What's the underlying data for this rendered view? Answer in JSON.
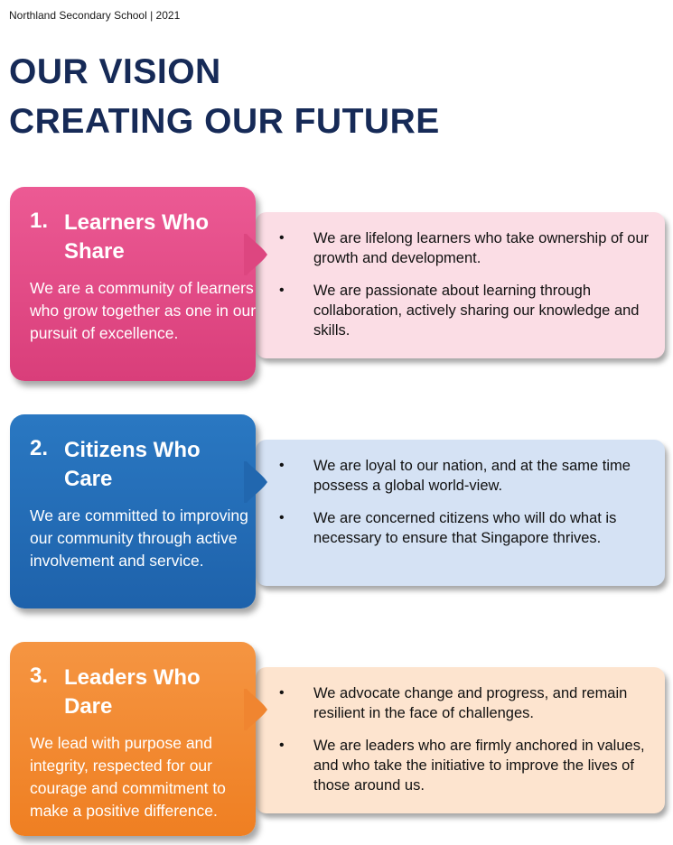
{
  "header": {
    "text": "Northland Secondary School | 2021"
  },
  "title": {
    "line1": "OUR VISION",
    "line2": "CREATING OUR FUTURE"
  },
  "sections": [
    {
      "number": "1.",
      "heading": "Learners Who Share",
      "description": "We are a community of learners who grow together as one in our pursuit of excellence.",
      "bullets": [
        "We are lifelong learners who take ownership of our growth and development.",
        "We are passionate about learning through collaboration, actively sharing our knowledge and skills."
      ],
      "color": "#e24f8a"
    },
    {
      "number": "2.",
      "heading": "Citizens Who Care",
      "description": "We are committed to improving our community through active involvement and service.",
      "bullets": [
        "We are loyal to our nation, and at the same time possess a global world-view.",
        "We are concerned citizens who will do what is necessary to ensure that Singapore thrives."
      ],
      "color": "#2470b8"
    },
    {
      "number": "3.",
      "heading": "Leaders Who Dare",
      "description": "We lead with purpose and integrity, respected for our courage and commitment to make a positive difference.",
      "bullets": [
        "We advocate change and progress, and remain resilient in the face of challenges.",
        "We are leaders who are firmly anchored in values, and who take the initiative to improve the lives of those around us."
      ],
      "color": "#f28a2e"
    }
  ],
  "bullet_glyph": "•"
}
